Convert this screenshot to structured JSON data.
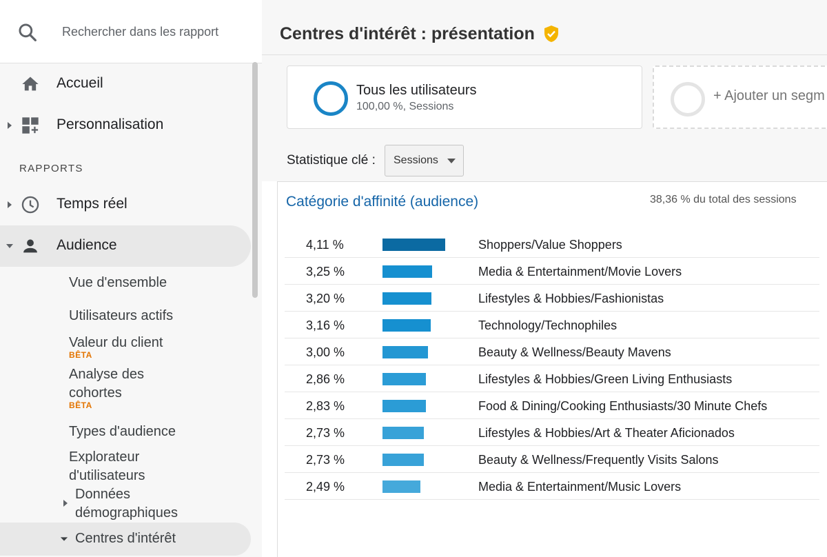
{
  "sidebar": {
    "search": {
      "placeholder": "Rechercher dans les rapport",
      "icon": "search-icon"
    },
    "items": [
      {
        "label": "Accueil",
        "icon": "home-icon"
      },
      {
        "label": "Personnalisation",
        "icon": "dashboard-add-icon"
      }
    ],
    "section_title": "RAPPORTS",
    "reports": [
      {
        "label": "Temps réel",
        "icon": "clock-icon"
      },
      {
        "label": "Audience",
        "icon": "person-icon"
      }
    ],
    "audience_sub": {
      "overview": "Vue d'ensemble",
      "active_users": "Utilisateurs actifs",
      "client_value": "Valeur du client",
      "client_value_badge": "BÊTA",
      "cohort_line1": "Analyse des",
      "cohort_line2": "cohortes",
      "cohort_badge": "BÊTA",
      "audience_types": "Types d'audience",
      "explorer_line1": "Explorateur",
      "explorer_line2": "d'utilisateurs",
      "demographics_line1": "Données",
      "demographics_line2": "démographiques",
      "interests": "Centres d'intérêt"
    }
  },
  "header": {
    "title": "Centres d'intérêt : présentation",
    "verified_icon": "verified-shield-icon",
    "verified_color": "#f4b400"
  },
  "segments": {
    "current": {
      "name": "Tous les utilisateurs",
      "detail": "100,00 %, Sessions",
      "color": "#1a85c6"
    },
    "add_label": "+ Ajouter un segm"
  },
  "metric": {
    "label": "Statistique clé :",
    "selected": "Sessions"
  },
  "affinity": {
    "title": "Catégorie d'affinité (audience)",
    "total": "38,36 % du total des sessions",
    "rows": [
      {
        "pct": "4,11 %",
        "value": 4.11,
        "category": "Shoppers/Value Shoppers",
        "color": "#0b6aa2"
      },
      {
        "pct": "3,25 %",
        "value": 3.25,
        "category": "Media & Entertainment/Movie Lovers",
        "color": "#1690d0"
      },
      {
        "pct": "3,20 %",
        "value": 3.2,
        "category": "Lifestyles & Hobbies/Fashionistas",
        "color": "#1690d0"
      },
      {
        "pct": "3,16 %",
        "value": 3.16,
        "category": "Technology/Technophiles",
        "color": "#1690d0"
      },
      {
        "pct": "3,00 %",
        "value": 3.0,
        "category": "Beauty & Wellness/Beauty Mavens",
        "color": "#2397d3"
      },
      {
        "pct": "2,86 %",
        "value": 2.86,
        "category": "Lifestyles & Hobbies/Green Living Enthusiasts",
        "color": "#2b9cd6"
      },
      {
        "pct": "2,83 %",
        "value": 2.83,
        "category": "Food & Dining/Cooking Enthusiasts/30 Minute Chefs",
        "color": "#2b9cd6"
      },
      {
        "pct": "2,73 %",
        "value": 2.73,
        "category": "Lifestyles & Hobbies/Art & Theater Aficionados",
        "color": "#38a2d8"
      },
      {
        "pct": "2,73 %",
        "value": 2.73,
        "category": "Beauty & Wellness/Frequently Visits Salons",
        "color": "#38a2d8"
      },
      {
        "pct": "2,49 %",
        "value": 2.49,
        "category": "Media & Entertainment/Music Lovers",
        "color": "#45a9db"
      }
    ]
  }
}
